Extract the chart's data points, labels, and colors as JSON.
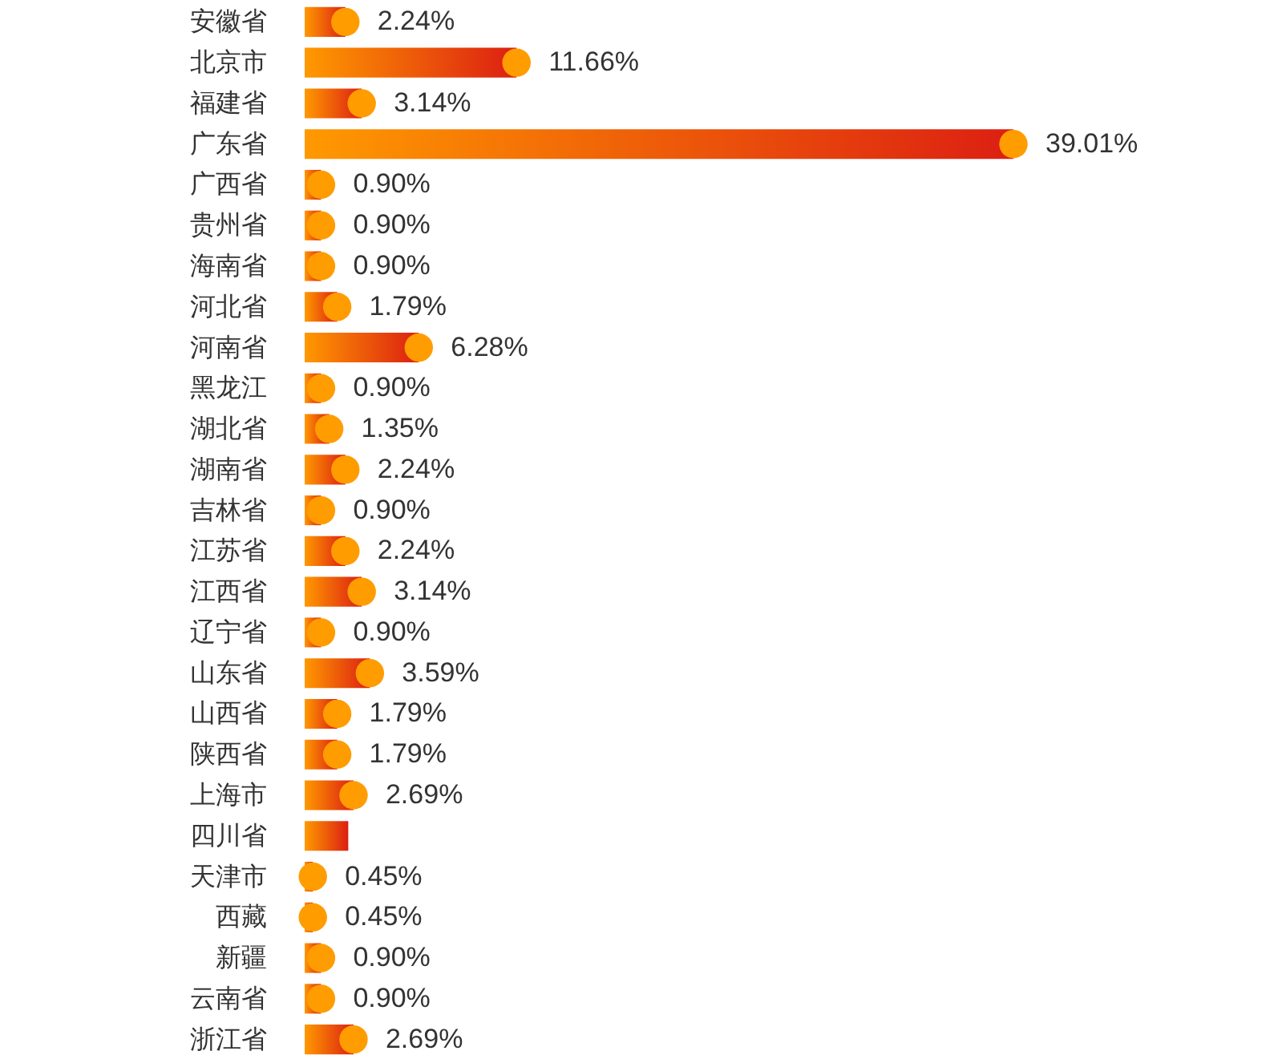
{
  "chart_data": {
    "type": "bar",
    "orientation": "horizontal",
    "marker": "circle",
    "tick_labels": "y",
    "categories": [
      "安徽省",
      "北京市",
      "福建省",
      "广东省",
      "广西省",
      "贵州省",
      "海南省",
      "河北省",
      "河南省",
      "黑龙江",
      "湖北省",
      "湖南省",
      "吉林省",
      "江苏省",
      "江西省",
      "辽宁省",
      "山东省",
      "山西省",
      "陕西省",
      "上海市",
      "四川省",
      "天津市",
      "西藏",
      "新疆",
      "云南省",
      "浙江省"
    ],
    "series": [
      {
        "color": "#ff9900",
        "values": [
          2.24,
          11.66,
          3.14,
          39.01,
          0.9,
          0.9,
          0.9,
          1.79,
          6.28,
          0.9,
          1.35,
          2.24,
          0.9,
          2.24,
          3.14,
          0.9,
          3.59,
          1.79,
          1.79,
          2.69,
          2.4,
          0.45,
          0.45,
          0.9,
          0.9,
          2.69
        ],
        "value_labels": [
          "2.24%",
          "11.66%",
          "3.14%",
          "39.01%",
          "0.90%",
          "0.90%",
          "0.90%",
          "1.79%",
          "6.28%",
          "0.90%",
          "1.35%",
          "2.24%",
          "0.90%",
          "2.24%",
          "3.14%",
          "0.90%",
          "3.59%",
          "1.79%",
          "1.79%",
          "2.69%",
          null,
          "0.45%",
          "0.45%",
          "0.90%",
          "0.90%",
          "2.69%"
        ]
      },
      {
        "type": "scatter",
        "color": "#ff9c00",
        "values": [
          2.24,
          11.66,
          3.14,
          39.01,
          0.9,
          0.9,
          0.9,
          1.79,
          6.28,
          0.9,
          1.35,
          2.24,
          0.9,
          2.24,
          3.14,
          0.9,
          3.59,
          1.79,
          1.79,
          2.69,
          null,
          0.45,
          0.45,
          0.9,
          0.9,
          2.69
        ]
      }
    ]
  }
}
